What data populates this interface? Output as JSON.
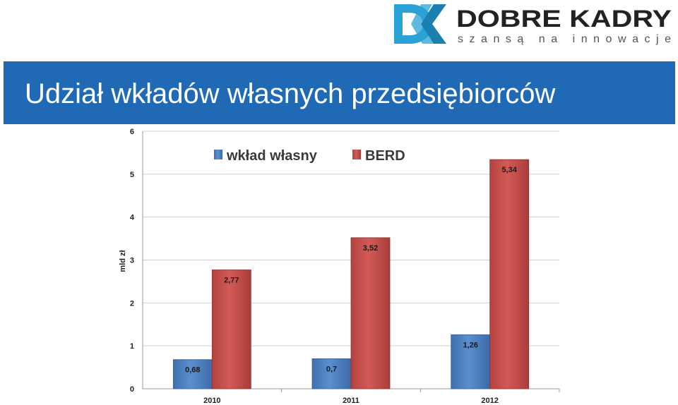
{
  "brand": {
    "name": "DOBRE KADRY",
    "tagline": "szansą na innowacje",
    "logo_mark": "DK",
    "colors": {
      "mark": "#29a3d6",
      "text": "#222222"
    }
  },
  "slide": {
    "title": "Udział wkładów własnych przedsiębiorców",
    "title_bar_color": "#1f69b5"
  },
  "chart_data": {
    "type": "bar",
    "categories": [
      "2010",
      "2011",
      "2012"
    ],
    "series": [
      {
        "name": "wkład własny",
        "values": [
          0.68,
          0.7,
          1.26
        ],
        "labels": [
          "0,68",
          "0,7",
          "1,26"
        ],
        "color": "#4f81bd"
      },
      {
        "name": "BERD",
        "values": [
          2.77,
          3.52,
          5.34
        ],
        "labels": [
          "2,77",
          "3,52",
          "5,34"
        ],
        "color": "#c0504d"
      }
    ],
    "ylabel": "mld zł",
    "xlabel": "",
    "ylim": [
      0,
      6
    ],
    "yticks": [
      "0",
      "1",
      "2",
      "3",
      "4",
      "5",
      "6"
    ],
    "grid": true,
    "legend": "top"
  }
}
